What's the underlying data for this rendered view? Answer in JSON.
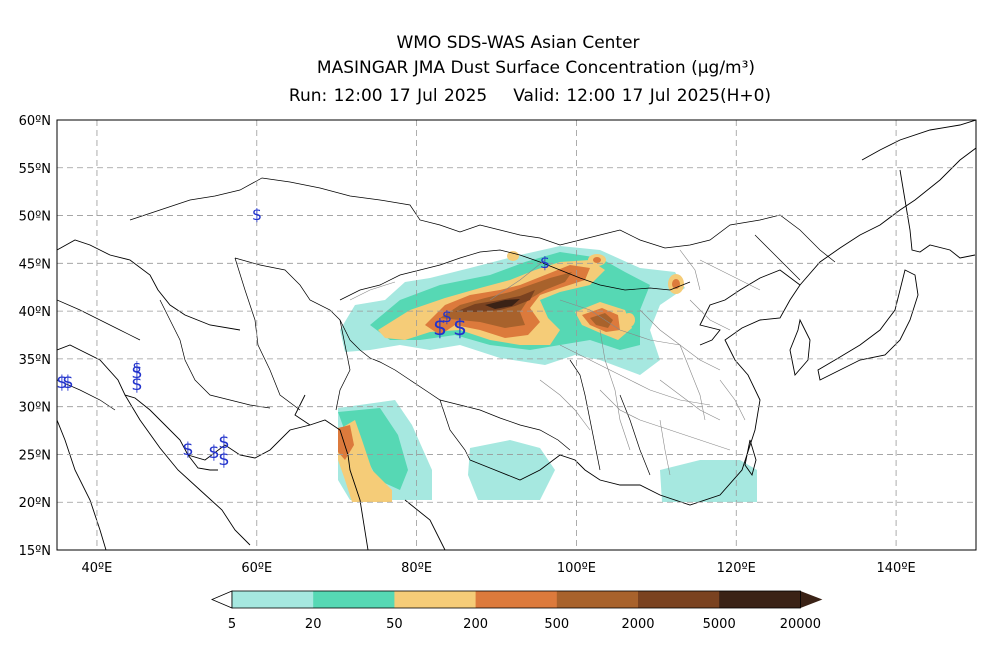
{
  "header": {
    "title": "WMO SDS-WAS Asian Center",
    "subtitle": "MASINGAR JMA Dust Surface Concentration",
    "unit": "(μg/m³)",
    "run": "Run: 12:00 17 Jul 2025",
    "valid": "Valid: 12:00 17 Jul 2025(H+0)"
  },
  "map": {
    "lon_range": [
      35,
      150
    ],
    "lat_range": [
      15,
      60
    ],
    "lat_ticks": [
      {
        "value": 60,
        "label": "60ºN"
      },
      {
        "value": 55,
        "label": "55ºN"
      },
      {
        "value": 50,
        "label": "50ºN"
      },
      {
        "value": 45,
        "label": "45ºN"
      },
      {
        "value": 40,
        "label": "40ºN"
      },
      {
        "value": 35,
        "label": "35ºN"
      },
      {
        "value": 30,
        "label": "30ºN"
      },
      {
        "value": 25,
        "label": "25ºN"
      },
      {
        "value": 20,
        "label": "20ºN"
      },
      {
        "value": 15,
        "label": "15ºN"
      }
    ],
    "lon_ticks": [
      {
        "value": 40,
        "label": "40ºE"
      },
      {
        "value": 60,
        "label": "60ºE"
      },
      {
        "value": 80,
        "label": "80ºE"
      },
      {
        "value": 100,
        "label": "100ºE"
      },
      {
        "value": 120,
        "label": "120ºE"
      },
      {
        "value": 140,
        "label": "140ºE"
      }
    ],
    "grid": true,
    "station_marker": "$"
  },
  "colorbar": {
    "labels": [
      "5",
      "20",
      "50",
      "200",
      "500",
      "2000",
      "5000",
      "20000"
    ],
    "colors": [
      "#a6e8e0",
      "#56d8b4",
      "#f5cc78",
      "#dc7a3c",
      "#a8622c",
      "#7a4220",
      "#3a2216"
    ]
  }
}
